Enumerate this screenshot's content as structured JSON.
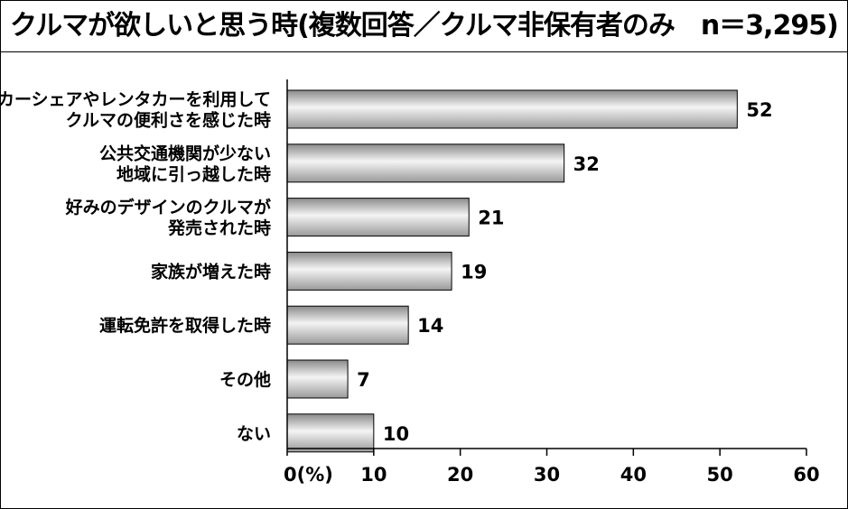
{
  "title": "クルマが欲しいと思う時(複数回答／クルマ非保有者のみ　n＝3,295)",
  "chart_data": {
    "type": "bar",
    "orientation": "horizontal",
    "title": "クルマが欲しいと思う時(複数回答／クルマ非保有者のみ　n＝3,295)",
    "xlabel": "",
    "ylabel": "",
    "unit_label": "(%)",
    "xlim": [
      0,
      60
    ],
    "ticks": [
      0,
      10,
      20,
      30,
      40,
      50,
      60
    ],
    "tick_labels": [
      "0(%)",
      "10",
      "20",
      "30",
      "40",
      "50",
      "60"
    ],
    "grid": false,
    "categories": [
      [
        "カーシェアやレンタカーを利用して",
        "クルマの便利さを感じた時"
      ],
      [
        "公共交通機関が少ない",
        "地域に引っ越した時"
      ],
      [
        "好みのデザインのクルマが",
        "発売された時"
      ],
      [
        "家族が増えた時"
      ],
      [
        "運転免許を取得した時"
      ],
      [
        "その他"
      ],
      [
        "ない"
      ]
    ],
    "values": [
      52,
      32,
      21,
      19,
      14,
      7,
      10
    ],
    "value_labels": [
      "52",
      "32",
      "21",
      "19",
      "14",
      "7",
      "10"
    ],
    "bar_gradient": [
      "#8a8a8a",
      "#f4f4f4",
      "#9a9a9a"
    ]
  }
}
